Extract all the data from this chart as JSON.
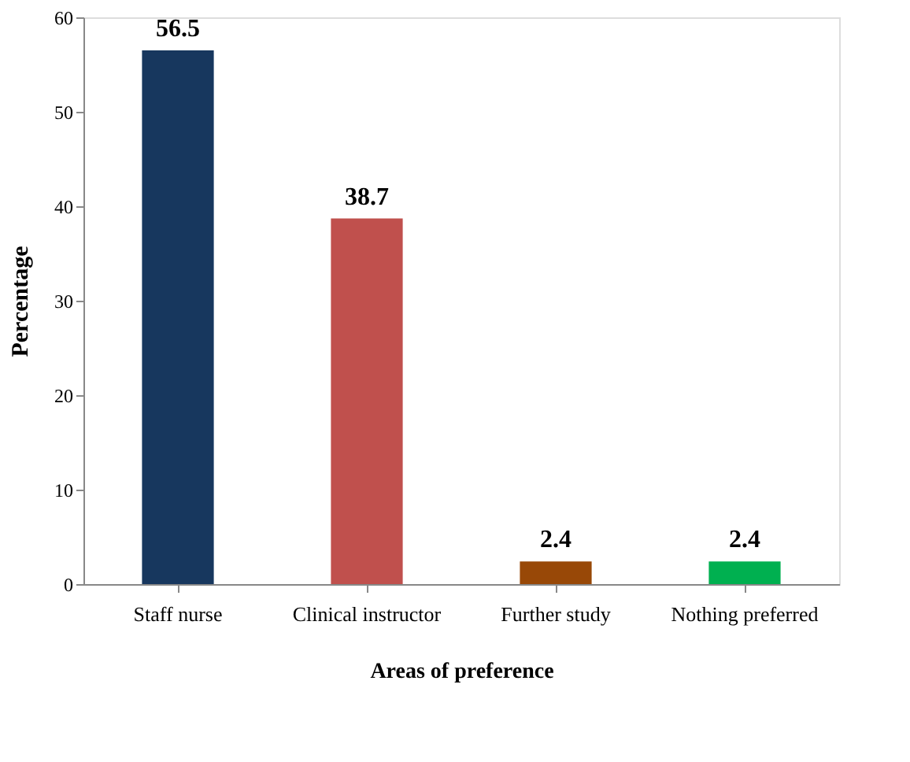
{
  "chart_data": {
    "type": "bar",
    "xlabel": "Areas of preference",
    "ylabel": "Percentage",
    "categories": [
      "Staff nurse",
      "Clinical instructor",
      "Further study",
      "Nothing preferred"
    ],
    "values": [
      56.5,
      38.7,
      2.4,
      2.4
    ],
    "colors": [
      "#17375e",
      "#c0504d",
      "#984807",
      "#00b050"
    ],
    "ylim": [
      0,
      60
    ],
    "yticks": [
      0,
      10,
      20,
      30,
      40,
      50,
      60
    ],
    "grid": false,
    "legend": false,
    "data_labels": true
  }
}
